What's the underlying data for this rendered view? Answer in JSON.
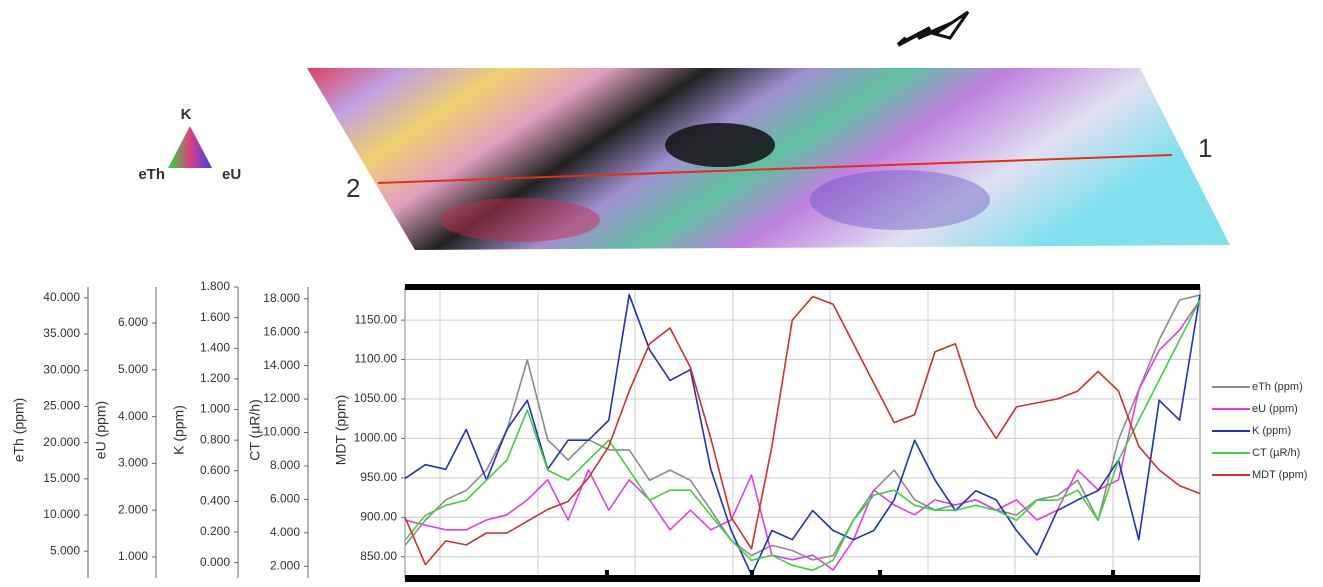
{
  "map": {
    "line_start": "2",
    "line_end": "1",
    "ternary": {
      "top": "K",
      "left": "eTh",
      "right": "eU"
    }
  },
  "chart_data": {
    "type": "line",
    "grid": true,
    "legend": "right",
    "axes": [
      {
        "label": "eTh (ppm)",
        "ylim": [
          1.3,
          41.5
        ],
        "yticks": [
          {
            "value": 5,
            "label": "5.000"
          },
          {
            "value": 10,
            "label": "10.000"
          },
          {
            "value": 15,
            "label": "15.000"
          },
          {
            "value": 20,
            "label": "20.000"
          },
          {
            "value": 25,
            "label": "25.000"
          },
          {
            "value": 30,
            "label": "30.000"
          },
          {
            "value": 35,
            "label": "35.000"
          },
          {
            "value": 40,
            "label": "40.000"
          }
        ]
      },
      {
        "label": "eU (ppm)",
        "ylim": [
          0.55,
          6.77
        ],
        "yticks": [
          {
            "value": 1,
            "label": "1.000"
          },
          {
            "value": 2,
            "label": "2.000"
          },
          {
            "value": 3,
            "label": "3.000"
          },
          {
            "value": 4,
            "label": "4.000"
          },
          {
            "value": 5,
            "label": "5.000"
          },
          {
            "value": 6,
            "label": "6.000"
          }
        ]
      },
      {
        "label": "K (ppm)",
        "ylim": [
          -0.1,
          1.8
        ],
        "yticks": [
          {
            "value": 0,
            "label": "0.000"
          },
          {
            "value": 0.2,
            "label": "0.200"
          },
          {
            "value": 0.4,
            "label": "0.400"
          },
          {
            "value": 0.6,
            "label": "0.600"
          },
          {
            "value": 0.8,
            "label": "0.800"
          },
          {
            "value": 1,
            "label": "1.000"
          },
          {
            "value": 1.2,
            "label": "1.200"
          },
          {
            "value": 1.4,
            "label": "1.400"
          },
          {
            "value": 1.6,
            "label": "1.600"
          },
          {
            "value": 1.8,
            "label": "1.800"
          }
        ]
      },
      {
        "label": "CT (µR/h)",
        "ylim": [
          1.3,
          18.7
        ],
        "yticks": [
          {
            "value": 2,
            "label": "2.000"
          },
          {
            "value": 4,
            "label": "4.000"
          },
          {
            "value": 6,
            "label": "6.000"
          },
          {
            "value": 8,
            "label": "8.000"
          },
          {
            "value": 10,
            "label": "10.000"
          },
          {
            "value": 12,
            "label": "12.000"
          },
          {
            "value": 14,
            "label": "14.000"
          },
          {
            "value": 16,
            "label": "16.000"
          },
          {
            "value": 18,
            "label": "18.000"
          }
        ]
      },
      {
        "label": "MDT (ppm)",
        "ylim": [
          823,
          1192
        ],
        "yticks": [
          {
            "value": 850,
            "label": "850.00"
          },
          {
            "value": 900,
            "label": "900.00"
          },
          {
            "value": 950,
            "label": "950.00"
          },
          {
            "value": 1000,
            "label": "1000.00"
          },
          {
            "value": 1050,
            "label": "1050.00"
          },
          {
            "value": 1100,
            "label": "1100.00"
          },
          {
            "value": 1150,
            "label": "1150.00"
          }
        ]
      }
    ],
    "series": [
      {
        "name": "eTh (ppm)",
        "color": "#8c8c8c",
        "axis": 0,
        "values": [
          5.8,
          9.3,
          12.1,
          13.4,
          16.2,
          21.7,
          31.4,
          20.4,
          17.6,
          20.4,
          19.0,
          19.0,
          14.8,
          16.2,
          14.8,
          10.7,
          6.5,
          4.4,
          5.8,
          5.1,
          3.8,
          4.4,
          9.3,
          13.4,
          16.2,
          12.1,
          10.7,
          11.4,
          12.1,
          10.7,
          10.0,
          12.1,
          12.7,
          14.8,
          9.3,
          20.4,
          27.3,
          34.2,
          39.7,
          40.4
        ]
      },
      {
        "name": "eU (ppm)",
        "color": "#e040e0",
        "axis": 1,
        "values": [
          1.79,
          1.68,
          1.58,
          1.58,
          1.79,
          1.9,
          2.22,
          2.65,
          1.79,
          2.86,
          2.0,
          2.65,
          2.22,
          1.58,
          2.0,
          1.58,
          1.79,
          2.75,
          1.04,
          0.94,
          1.04,
          0.72,
          1.36,
          2.43,
          2.11,
          1.9,
          2.22,
          2.11,
          2.22,
          2.0,
          2.22,
          1.79,
          2.0,
          2.86,
          2.43,
          2.65,
          4.57,
          5.42,
          5.85,
          6.49
        ]
      },
      {
        "name": "K (ppm)",
        "color": "#2030c0",
        "axis": 2,
        "values": [
          0.55,
          0.64,
          0.61,
          0.87,
          0.54,
          0.87,
          1.06,
          0.61,
          0.8,
          0.8,
          0.93,
          1.75,
          1.39,
          1.19,
          1.26,
          0.61,
          0.21,
          -0.08,
          0.21,
          0.15,
          0.34,
          0.21,
          0.15,
          0.21,
          0.41,
          0.8,
          0.54,
          0.34,
          0.47,
          0.41,
          0.21,
          0.05,
          0.34,
          0.41,
          0.47,
          0.67,
          0.15,
          1.06,
          0.93,
          1.75
        ]
      },
      {
        "name": "CT (µR/h)",
        "color": "#40d040",
        "axis": 3,
        "values": [
          3.56,
          5.05,
          5.65,
          5.95,
          7.15,
          8.35,
          11.34,
          7.75,
          7.15,
          8.35,
          9.54,
          7.75,
          5.95,
          6.55,
          6.55,
          5.05,
          3.56,
          2.36,
          2.66,
          2.06,
          1.76,
          2.36,
          4.75,
          6.25,
          6.55,
          5.65,
          5.35,
          5.35,
          5.65,
          5.35,
          4.75,
          5.95,
          5.95,
          6.55,
          4.75,
          8.35,
          10.74,
          13.14,
          15.53,
          17.93
        ]
      },
      {
        "name": "MDT (ppm)",
        "color": "#d03028",
        "axis": 4,
        "values": [
          900,
          840,
          870,
          865,
          880,
          880,
          895,
          910,
          920,
          950,
          990,
          1060,
          1120,
          1140,
          1090,
          1000,
          900,
          860,
          990,
          1150,
          1180,
          1170,
          1120,
          1070,
          1020,
          1030,
          1110,
          1120,
          1040,
          1000,
          1040,
          1045,
          1050,
          1060,
          1085,
          1060,
          990,
          960,
          940,
          930
        ]
      }
    ]
  }
}
